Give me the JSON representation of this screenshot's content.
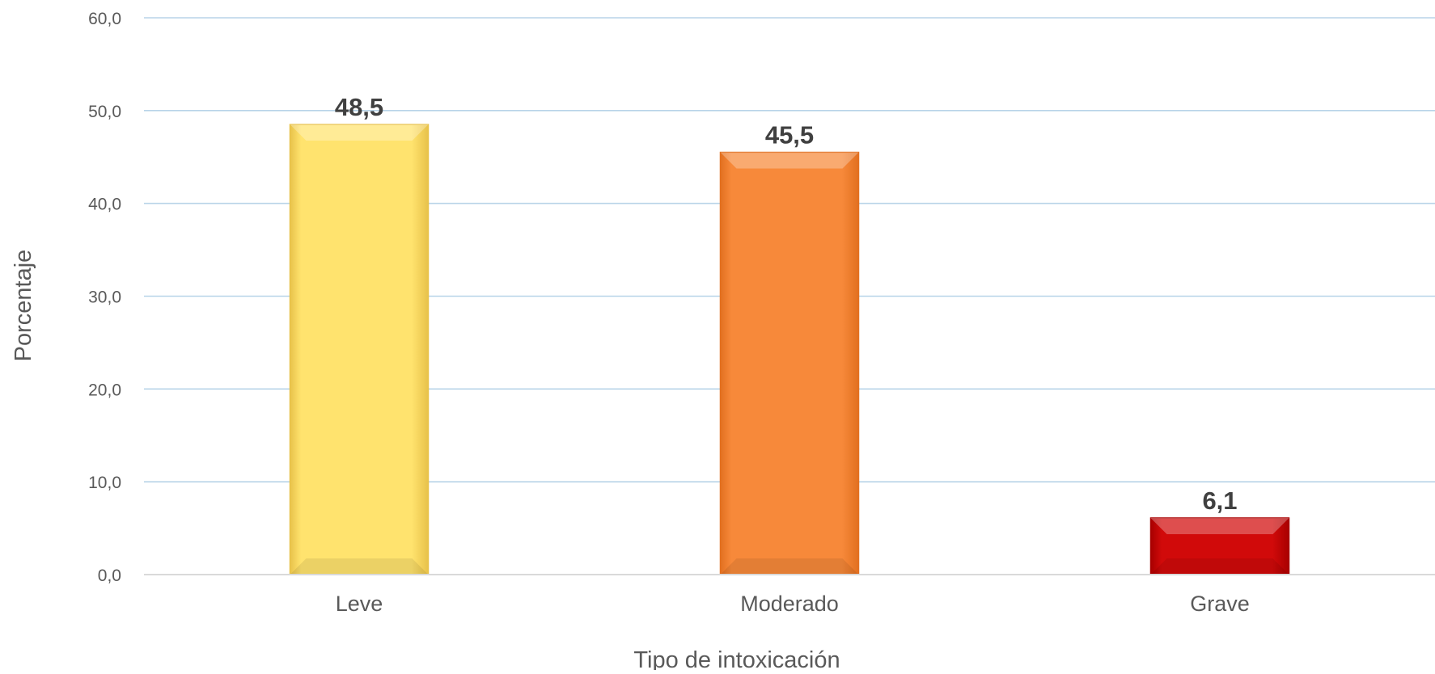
{
  "chart_data": {
    "type": "bar",
    "categories": [
      "Leve",
      "Moderado",
      "Grave"
    ],
    "values": [
      48.5,
      45.5,
      6.1
    ],
    "value_labels": [
      "48,5",
      "45,5",
      "6,1"
    ],
    "title": "",
    "xlabel": "Tipo de intoxicación",
    "ylabel": "Porcentaje",
    "ylim": [
      0,
      60
    ],
    "yticks": [
      0,
      10,
      20,
      30,
      40,
      50,
      60
    ],
    "ytick_labels": [
      "0,0",
      "10,0",
      "20,0",
      "30,0",
      "40,0",
      "50,0",
      "60,0"
    ],
    "grid": true,
    "legend": "none",
    "colors": {
      "bars": [
        "#FFE36E",
        "#F7893A",
        "#D10A0A"
      ],
      "bar_edges": [
        "#E8C24A",
        "#E27020",
        "#A80000"
      ],
      "gridline": "#B8D4E8",
      "axis": "#D9D9D9",
      "tick_text": "#595959",
      "label_text": "#404040"
    }
  }
}
